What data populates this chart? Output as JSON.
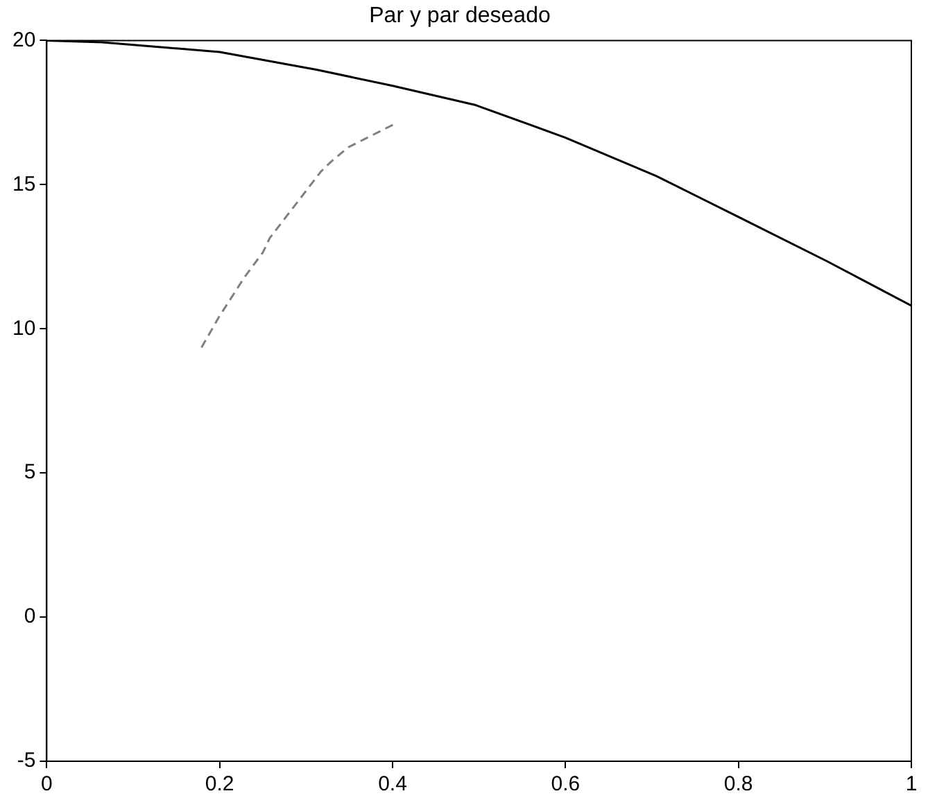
{
  "chart_data": {
    "type": "line",
    "title": "Par y par deseado",
    "xlim": [
      0,
      1
    ],
    "xticks": [
      0,
      0.2,
      0.4,
      0.6,
      0.8,
      1
    ],
    "ylim": [
      -5,
      20
    ],
    "yticks": [
      -5,
      0,
      5,
      10,
      15,
      20
    ],
    "grid": false,
    "marker": "none",
    "series": [
      {
        "color": "#000000",
        "line_style": "solid",
        "x": [
          0,
          0.064,
          0.2,
          0.313,
          0.4,
          0.496,
          0.6,
          0.705,
          0.8,
          0.902,
          1
        ],
        "values": [
          20,
          19.94,
          19.6,
          18.98,
          18.43,
          17.76,
          16.63,
          15.3,
          13.88,
          12.35,
          10.8
        ]
      },
      {
        "color": "#808080",
        "line_style": "dashed",
        "x": [
          0.179,
          0.199,
          0.229,
          0.25,
          0.258,
          0.317,
          0.329,
          0.349,
          0.402
        ],
        "values": [
          9.35,
          10.4,
          11.8,
          12.65,
          13.15,
          15.45,
          15.8,
          16.3,
          17.1
        ]
      }
    ]
  }
}
